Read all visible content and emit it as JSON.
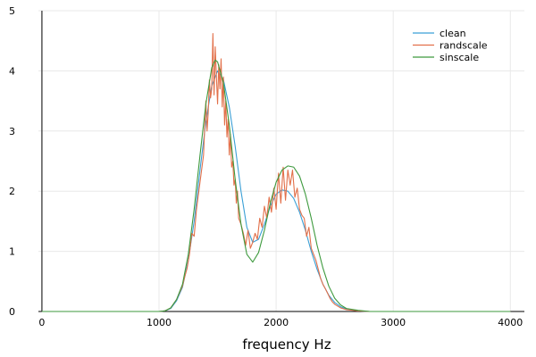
{
  "chart_data": {
    "type": "line",
    "title": "",
    "xlabel": "frequency Hz",
    "ylabel": "",
    "xlim": [
      -30,
      4120
    ],
    "ylim": [
      0,
      5
    ],
    "xticks": [
      0,
      1000,
      2000,
      3000,
      4000
    ],
    "yticks": [
      0,
      1,
      2,
      3,
      4,
      5
    ],
    "xtick_labels": [
      "0",
      "1000",
      "2000",
      "3000",
      "4000"
    ],
    "ytick_labels": [
      "0",
      "1",
      "2",
      "3",
      "4",
      "5"
    ],
    "grid": true,
    "legend_position": "top-right",
    "series": [
      {
        "name": "clean",
        "color": "#3a9fd6",
        "x": [
          0,
          500,
          1000,
          1050,
          1100,
          1150,
          1200,
          1250,
          1300,
          1350,
          1400,
          1450,
          1500,
          1550,
          1600,
          1650,
          1700,
          1750,
          1800,
          1850,
          1900,
          1950,
          2000,
          2050,
          2100,
          2150,
          2200,
          2250,
          2300,
          2350,
          2400,
          2450,
          2500,
          2550,
          2600,
          2700,
          2800,
          2900,
          3000,
          3500,
          4000
        ],
        "y": [
          0,
          0,
          0.0,
          0.01,
          0.05,
          0.18,
          0.4,
          0.85,
          1.5,
          2.35,
          3.15,
          3.75,
          4.0,
          3.85,
          3.4,
          2.75,
          2.0,
          1.4,
          1.15,
          1.2,
          1.45,
          1.75,
          1.95,
          2.02,
          2.0,
          1.88,
          1.65,
          1.35,
          1.0,
          0.7,
          0.45,
          0.27,
          0.15,
          0.08,
          0.04,
          0.01,
          0,
          0,
          0,
          0,
          0
        ]
      },
      {
        "name": "randscale",
        "color": "#e2704a",
        "x": [
          0,
          500,
          1000,
          1050,
          1100,
          1150,
          1200,
          1220,
          1240,
          1260,
          1280,
          1300,
          1320,
          1340,
          1360,
          1380,
          1400,
          1410,
          1420,
          1430,
          1440,
          1450,
          1460,
          1470,
          1480,
          1490,
          1500,
          1510,
          1520,
          1530,
          1540,
          1550,
          1560,
          1570,
          1580,
          1590,
          1600,
          1610,
          1620,
          1630,
          1640,
          1650,
          1660,
          1670,
          1680,
          1700,
          1720,
          1740,
          1760,
          1780,
          1800,
          1820,
          1840,
          1860,
          1880,
          1900,
          1920,
          1940,
          1960,
          1980,
          2000,
          2020,
          2040,
          2060,
          2080,
          2100,
          2120,
          2140,
          2160,
          2180,
          2200,
          2220,
          2240,
          2260,
          2280,
          2300,
          2320,
          2340,
          2360,
          2380,
          2400,
          2420,
          2440,
          2460,
          2480,
          2500,
          2550,
          2600,
          2700,
          2800,
          2900,
          3000,
          3500,
          4000
        ],
        "y": [
          0,
          0,
          0.0,
          0.01,
          0.06,
          0.2,
          0.42,
          0.58,
          0.72,
          0.95,
          1.3,
          1.25,
          1.7,
          2.0,
          2.3,
          2.6,
          3.5,
          3.0,
          3.3,
          3.85,
          3.55,
          3.7,
          4.62,
          3.6,
          4.4,
          3.9,
          3.45,
          4.1,
          3.7,
          4.2,
          3.4,
          3.9,
          3.1,
          3.5,
          2.9,
          3.2,
          2.6,
          2.95,
          2.4,
          2.5,
          2.1,
          2.2,
          1.8,
          2.0,
          1.55,
          1.45,
          1.3,
          1.1,
          1.35,
          1.05,
          1.15,
          1.3,
          1.2,
          1.55,
          1.4,
          1.75,
          1.55,
          1.9,
          1.65,
          2.05,
          1.7,
          2.3,
          1.8,
          2.4,
          1.85,
          2.35,
          2.1,
          2.35,
          1.9,
          2.05,
          1.7,
          1.6,
          1.55,
          1.25,
          1.4,
          1.05,
          0.95,
          0.85,
          0.7,
          0.55,
          0.45,
          0.38,
          0.3,
          0.22,
          0.16,
          0.12,
          0.06,
          0.03,
          0.01,
          0,
          0,
          0,
          0,
          0
        ]
      },
      {
        "name": "sinscale",
        "color": "#3e9a3e",
        "x": [
          0,
          500,
          1000,
          1050,
          1100,
          1150,
          1200,
          1250,
          1300,
          1350,
          1400,
          1450,
          1480,
          1500,
          1550,
          1600,
          1650,
          1700,
          1750,
          1800,
          1850,
          1900,
          1950,
          2000,
          2050,
          2100,
          2150,
          2200,
          2250,
          2300,
          2350,
          2400,
          2450,
          2500,
          2550,
          2600,
          2700,
          2800,
          2900,
          3000,
          3500,
          4000
        ],
        "y": [
          0,
          0,
          0.0,
          0.01,
          0.06,
          0.2,
          0.45,
          0.95,
          1.7,
          2.6,
          3.45,
          4.05,
          4.18,
          4.15,
          3.8,
          3.1,
          2.2,
          1.45,
          0.95,
          0.82,
          0.98,
          1.35,
          1.8,
          2.15,
          2.35,
          2.42,
          2.4,
          2.25,
          1.95,
          1.55,
          1.1,
          0.72,
          0.42,
          0.22,
          0.11,
          0.05,
          0.02,
          0,
          0,
          0,
          0,
          0
        ]
      }
    ]
  }
}
